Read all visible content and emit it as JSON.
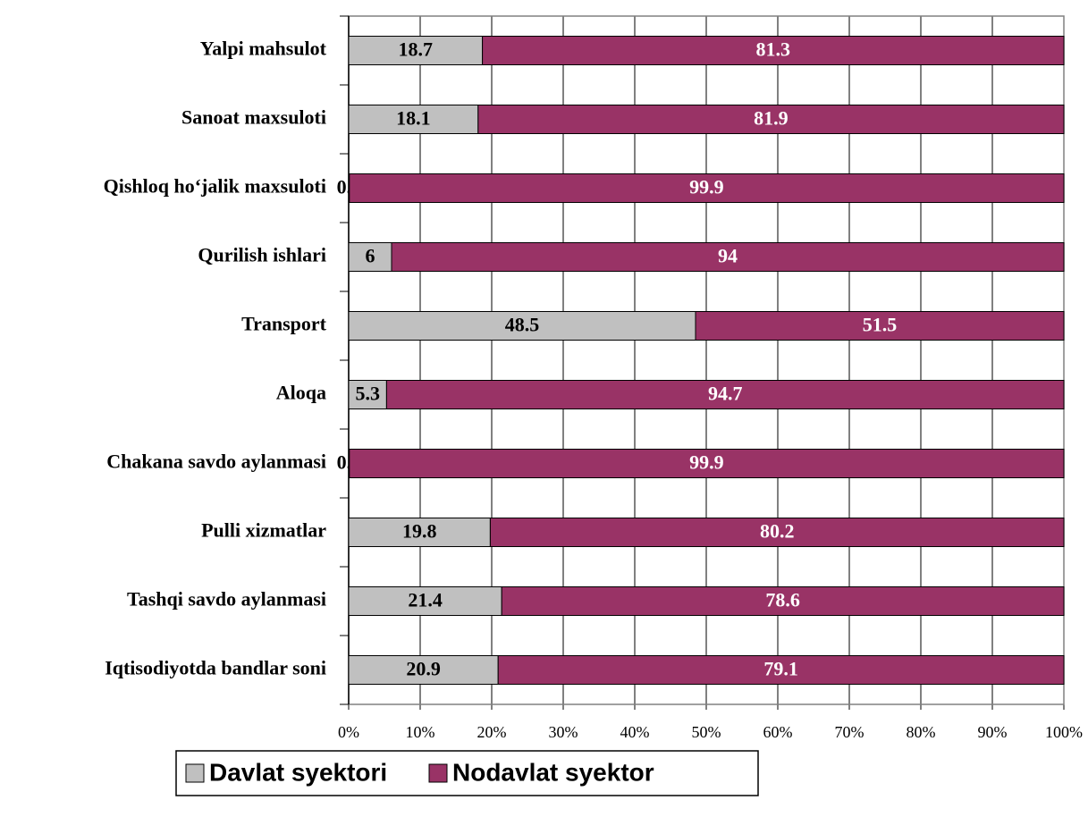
{
  "chart_data": {
    "type": "stacked_barh",
    "categories": [
      "Yalpi mahsulot",
      "Sanoat maxsuloti",
      "Qishloq ho‘jalik maxsuloti",
      "Qurilish ishlari",
      "Transport",
      "Aloqa",
      "Chakana savdo aylanmasi",
      "Pulli xizmatlar",
      "Tashqi savdo aylanmasi",
      "Iqtisodiyotda bandlar soni"
    ],
    "series": [
      {
        "name": "Davlat syektori",
        "color": "#c0c0c0",
        "label_color": "#000000",
        "values": [
          18.7,
          18.1,
          0.1,
          6,
          48.5,
          5.3,
          0.1,
          19.8,
          21.4,
          20.9
        ]
      },
      {
        "name": "Nodavlat syektor",
        "color": "#993366",
        "label_color": "#ffffff",
        "values": [
          81.3,
          81.9,
          99.9,
          94,
          51.5,
          94.7,
          99.9,
          80.2,
          78.6,
          79.1
        ]
      }
    ],
    "xlim": [
      0,
      100
    ],
    "xticks": [
      {
        "value": 0,
        "label": "0%"
      },
      {
        "value": 10,
        "label": "10%"
      },
      {
        "value": 20,
        "label": "20%"
      },
      {
        "value": 30,
        "label": "30%"
      },
      {
        "value": 40,
        "label": "40%"
      },
      {
        "value": 50,
        "label": "50%"
      },
      {
        "value": 60,
        "label": "60%"
      },
      {
        "value": 70,
        "label": "70%"
      },
      {
        "value": 80,
        "label": "80%"
      },
      {
        "value": 90,
        "label": "90%"
      },
      {
        "value": 100,
        "label": "100%"
      }
    ],
    "grid": true,
    "legend": "bottom"
  }
}
